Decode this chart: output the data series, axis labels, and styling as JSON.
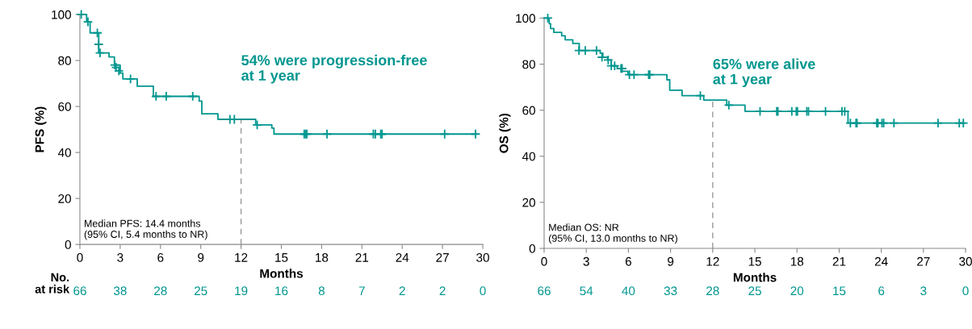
{
  "chart_data": [
    {
      "type": "step",
      "ylabel": "PFS (%)",
      "xlabel": "Months",
      "xlim": [
        0,
        30
      ],
      "xticks": [
        0,
        3,
        6,
        9,
        12,
        15,
        18,
        21,
        24,
        27,
        30
      ],
      "ylim": [
        0,
        100
      ],
      "yticks": [
        0,
        20,
        40,
        60,
        80,
        100
      ],
      "grid": false,
      "legend": false,
      "series": [
        {
          "color": "#00968f",
          "x": [
            0,
            0.5,
            0.76,
            1.4,
            2.17,
            2.57,
            3.0,
            3.2,
            4.27,
            5.47,
            8.88,
            9.08,
            10.28,
            13.09,
            14.29,
            14.45,
            29.5
          ],
          "values": [
            100,
            96.8,
            92,
            83.3,
            81.5,
            78,
            74.5,
            72,
            68.8,
            64.4,
            62.3,
            56.8,
            54.4,
            52,
            50.6,
            48,
            48
          ]
        },
        {
          "type": "scatter",
          "marker": "cross",
          "color": "#00968f",
          "x": [
            0.1,
            0.6,
            1.3,
            1.4,
            1.5,
            2.6,
            2.7,
            2.9,
            3.77,
            5.67,
            6.43,
            8.4,
            11.17,
            11.5,
            13.2,
            16.7,
            16.8,
            16.9,
            18.4,
            21.85,
            22.0,
            22.4,
            22.5,
            27.16,
            29.46
          ],
          "values": [
            100,
            96.8,
            92,
            87,
            83.3,
            78,
            77,
            75.5,
            72,
            64.4,
            64.4,
            64.4,
            54.4,
            54.4,
            52,
            48,
            48,
            48,
            48,
            48,
            48,
            48,
            48,
            48,
            48
          ]
        }
      ],
      "ref_lines": [
        {
          "axis": "x",
          "value": 12,
          "color": "#999999",
          "line_style": "dashed"
        }
      ],
      "annotations": [
        "54% were progression-free\nat 1 year",
        "Median PFS: 14.4 months\n(95% CI, 5.4 months to NR)",
        "No.\nat risk",
        "66",
        "38",
        "28",
        "25",
        "19",
        "16",
        "8",
        "7",
        "2",
        "2",
        "0"
      ]
    },
    {
      "type": "step",
      "ylabel": "OS (%)",
      "xlabel": "Months",
      "xlim": [
        0,
        30
      ],
      "xticks": [
        0,
        3,
        6,
        9,
        12,
        15,
        18,
        21,
        24,
        27,
        30
      ],
      "ylim": [
        0,
        100
      ],
      "yticks": [
        0,
        20,
        40,
        60,
        80,
        100
      ],
      "grid": false,
      "legend": false,
      "series": [
        {
          "color": "#00968f",
          "x": [
            0,
            0.36,
            0.46,
            0.69,
            1.25,
            1.5,
            2.04,
            2.5,
            3.99,
            4.18,
            4.52,
            4.78,
            5.2,
            5.51,
            5.97,
            8.74,
            8.94,
            9.82,
            11.36,
            13.0,
            14.3,
            21.63,
            29.9
          ],
          "values": [
            100,
            97.6,
            95.5,
            93.8,
            92.3,
            90.6,
            89,
            85.9,
            84.8,
            83,
            81.8,
            79.3,
            78.1,
            76.9,
            75.4,
            73.2,
            68.7,
            66.3,
            64.4,
            62.2,
            59.5,
            54.4,
            54.4
          ]
        },
        {
          "type": "scatter",
          "marker": "cross",
          "color": "#00968f",
          "x": [
            0.26,
            2.48,
            2.93,
            3.73,
            4.12,
            4.56,
            4.78,
            5.02,
            5.47,
            5.55,
            6.07,
            6.4,
            7.44,
            7.52,
            11.12,
            13.15,
            15.37,
            16.56,
            16.64,
            17.63,
            17.95,
            18.03,
            18.7,
            18.82,
            20.03,
            21.2,
            21.4,
            21.8,
            22.2,
            22.27,
            23.68,
            23.76,
            24.05,
            24.17,
            24.9,
            28.04,
            29.55,
            29.84
          ],
          "values": [
            100,
            85.9,
            85.9,
            85.9,
            83,
            81.8,
            79.3,
            79.3,
            78.1,
            78.1,
            75.4,
            75.4,
            75.4,
            75.4,
            66.3,
            62.2,
            59.5,
            59.5,
            59.5,
            59.5,
            59.5,
            59.5,
            59.5,
            59.5,
            59.5,
            59.5,
            59.5,
            54.4,
            54.4,
            54.4,
            54.4,
            54.4,
            54.4,
            54.4,
            54.4,
            54.4,
            54.4,
            54.4
          ]
        }
      ],
      "ref_lines": [
        {
          "axis": "x",
          "value": 12,
          "color": "#999999",
          "line_style": "dashed"
        }
      ],
      "annotations": [
        "65% were alive\nat 1 year",
        "Median OS: NR\n(95% CI, 13.0 months to NR)",
        "66",
        "54",
        "40",
        "33",
        "28",
        "25",
        "20",
        "15",
        "6",
        "3",
        "0"
      ]
    }
  ]
}
